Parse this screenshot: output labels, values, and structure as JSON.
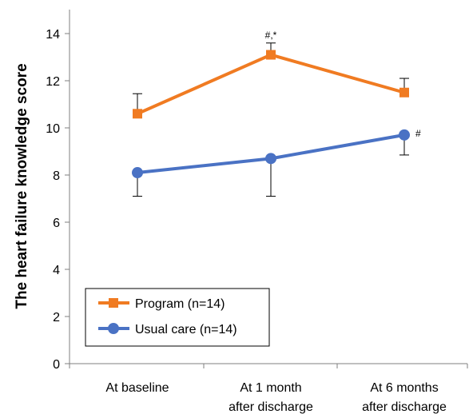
{
  "chart_data": {
    "type": "line",
    "categories": [
      [
        "At baseline"
      ],
      [
        "At 1 month",
        "after discharge"
      ],
      [
        "At 6 months",
        "after discharge"
      ]
    ],
    "ylabel": "The heart failure knowledge score",
    "ylim": [
      0,
      15
    ],
    "yticks": [
      0,
      2,
      4,
      6,
      8,
      10,
      12,
      14
    ],
    "grid": false,
    "legend_position": "bottom-left",
    "series": [
      {
        "name": "Program (n=14)",
        "marker": "square",
        "color": "#f07b22",
        "values": [
          10.6,
          13.1,
          11.5
        ],
        "err_low": [
          null,
          null,
          null
        ],
        "err_high": [
          11.45,
          13.6,
          12.1
        ],
        "annotations": [
          "",
          "#,*",
          ""
        ]
      },
      {
        "name": "Usual care (n=14)",
        "marker": "circle",
        "color": "#4a72c4",
        "values": [
          8.1,
          8.7,
          9.7
        ],
        "err_low": [
          7.1,
          7.1,
          8.85
        ],
        "err_high": [
          null,
          null,
          null
        ],
        "annotations": [
          "",
          "",
          "#"
        ]
      }
    ]
  }
}
